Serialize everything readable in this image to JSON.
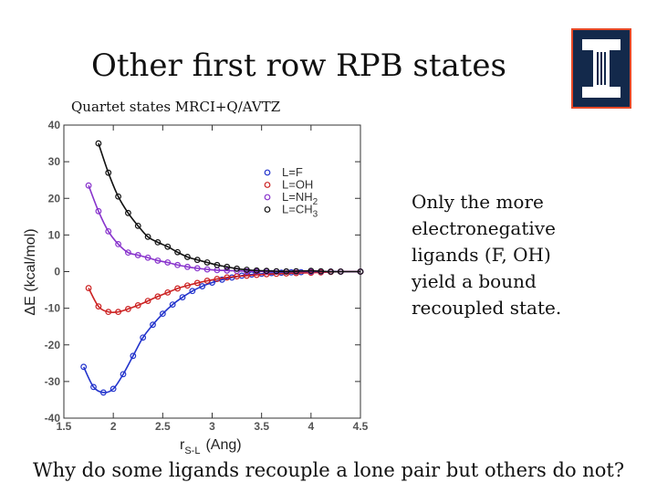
{
  "slide": {
    "title": "Other first row RPB states",
    "subtitle": "Quartet states MRCI+Q/AVTZ",
    "side_text": [
      "Only the more",
      "electronegative",
      "ligands (F, OH)",
      "yield a bound",
      "recoupled state."
    ],
    "bottom_question": "Why do some ligands recouple a lone pair but others do not?"
  },
  "logo": {
    "color_bg": "#13294B",
    "color_fg": "#FFFFFF",
    "color_border": "#E84A27"
  },
  "chart_data": {
    "type": "line",
    "xlabel": "r",
    "xlabel_sub": "S-L",
    "xlabel_unit": "(Ang)",
    "ylabel": "ΔE (kcal/mol)",
    "xlim": [
      1.5,
      4.5
    ],
    "ylim": [
      -40,
      40
    ],
    "xticks": [
      1.5,
      2,
      2.5,
      3,
      3.5,
      4,
      4.5
    ],
    "xtick_labels": [
      "1.5",
      "2",
      "2.5",
      "3",
      "3.5",
      "4",
      "4.5"
    ],
    "yticks": [
      -40,
      -30,
      -20,
      -10,
      0,
      10,
      20,
      30,
      40
    ],
    "ytick_labels": [
      "-40",
      "-30",
      "-20",
      "-10",
      "0",
      "10",
      "20",
      "30",
      "40"
    ],
    "legend": [
      {
        "name": "L=F",
        "color": "#2233CC"
      },
      {
        "name": "L=OH",
        "color": "#CC2222"
      },
      {
        "name": "L=NH",
        "sub": "2",
        "color": "#8833CC"
      },
      {
        "name": "L=CH",
        "sub": "3",
        "color": "#111111"
      }
    ],
    "series": [
      {
        "name": "L=F",
        "color": "#2233CC",
        "x": [
          1.7,
          1.8,
          1.9,
          2.0,
          2.1,
          2.2,
          2.3,
          2.4,
          2.5,
          2.6,
          2.7,
          2.8,
          2.9,
          3.0,
          3.1,
          3.2,
          3.3,
          3.4,
          3.5,
          3.6,
          3.7,
          3.8,
          3.9,
          4.0,
          4.1,
          4.2,
          4.3,
          4.5
        ],
        "y": [
          -26,
          -31.5,
          -33,
          -32,
          -28,
          -23,
          -18,
          -14.5,
          -11.5,
          -9,
          -7,
          -5.3,
          -4,
          -3,
          -2.2,
          -1.6,
          -1.1,
          -0.8,
          -0.6,
          -0.4,
          -0.3,
          -0.2,
          -0.15,
          -0.1,
          -0.05,
          0,
          0,
          0
        ]
      },
      {
        "name": "L=OH",
        "color": "#CC2222",
        "x": [
          1.75,
          1.85,
          1.95,
          2.05,
          2.15,
          2.25,
          2.35,
          2.45,
          2.55,
          2.65,
          2.75,
          2.85,
          2.95,
          3.05,
          3.15,
          3.25,
          3.35,
          3.45,
          3.55,
          3.65,
          3.75,
          3.85,
          4.0,
          4.1,
          4.2,
          4.3,
          4.5
        ],
        "y": [
          -4.5,
          -9.5,
          -11,
          -11,
          -10.2,
          -9.2,
          -8,
          -6.8,
          -5.7,
          -4.6,
          -3.8,
          -3.1,
          -2.5,
          -2,
          -1.6,
          -1.3,
          -1.1,
          -0.9,
          -0.7,
          -0.6,
          -0.5,
          -0.4,
          -0.3,
          -0.2,
          -0.1,
          0,
          0
        ]
      },
      {
        "name": "L=NH2",
        "color": "#8833CC",
        "x": [
          1.75,
          1.85,
          1.95,
          2.05,
          2.15,
          2.25,
          2.35,
          2.45,
          2.55,
          2.65,
          2.75,
          2.85,
          2.95,
          3.05,
          3.15,
          3.25,
          3.35,
          3.45,
          3.55,
          3.65,
          3.75,
          3.85,
          4.0,
          4.1,
          4.2,
          4.3,
          4.5
        ],
        "y": [
          23.5,
          16.5,
          11,
          7.5,
          5.2,
          4.5,
          3.8,
          3,
          2.5,
          1.8,
          1.3,
          0.9,
          0.6,
          0.4,
          0.3,
          0.2,
          0.1,
          0.05,
          0,
          0,
          0,
          0,
          0,
          0,
          0,
          0,
          0
        ]
      },
      {
        "name": "L=CH3",
        "color": "#111111",
        "x": [
          1.85,
          1.95,
          2.05,
          2.15,
          2.25,
          2.35,
          2.45,
          2.55,
          2.65,
          2.75,
          2.85,
          2.95,
          3.05,
          3.15,
          3.25,
          3.35,
          3.45,
          3.55,
          3.65,
          3.75,
          3.85,
          4.0,
          4.1,
          4.2,
          4.3,
          4.5
        ],
        "y": [
          35,
          27,
          20.5,
          16,
          12.5,
          9.5,
          8,
          6.8,
          5.3,
          4,
          3.2,
          2.5,
          1.8,
          1.3,
          0.8,
          0.5,
          0.3,
          0.2,
          0.1,
          0.05,
          0.1,
          0.2,
          0.1,
          0,
          0,
          0
        ]
      }
    ]
  }
}
